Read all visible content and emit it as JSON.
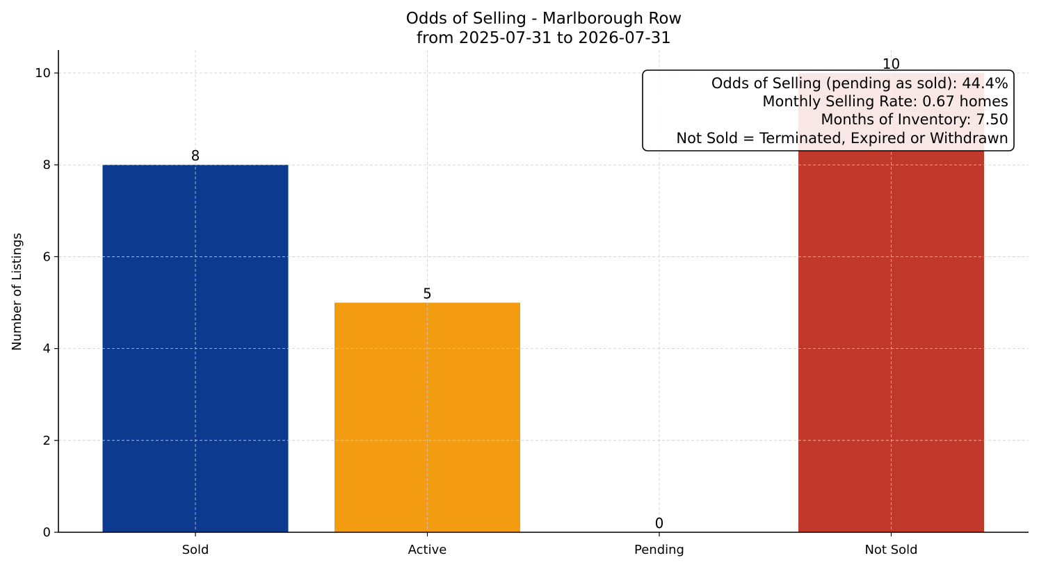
{
  "chart_data": {
    "type": "bar",
    "title": "Odds of Selling - Marlborough Row",
    "subtitle": "from 2025-07-31 to 2026-07-31",
    "xlabel": "",
    "ylabel": "Number of Listings",
    "categories": [
      "Sold",
      "Active",
      "Pending",
      "Not Sold"
    ],
    "values": [
      8,
      5,
      0,
      10
    ],
    "colors": [
      "#0b3a8e",
      "#f39c12",
      "#7f8c8d",
      "#c0392b"
    ],
    "ylim": [
      0,
      10.5
    ],
    "yticks": [
      0,
      2,
      4,
      6,
      8,
      10
    ],
    "grid": true,
    "annotation": [
      "Odds of Selling (pending as sold): 44.4%",
      "Monthly Selling Rate: 0.67 homes",
      "Months of Inventory: 7.50",
      "Not Sold = Terminated, Expired or Withdrawn"
    ]
  }
}
